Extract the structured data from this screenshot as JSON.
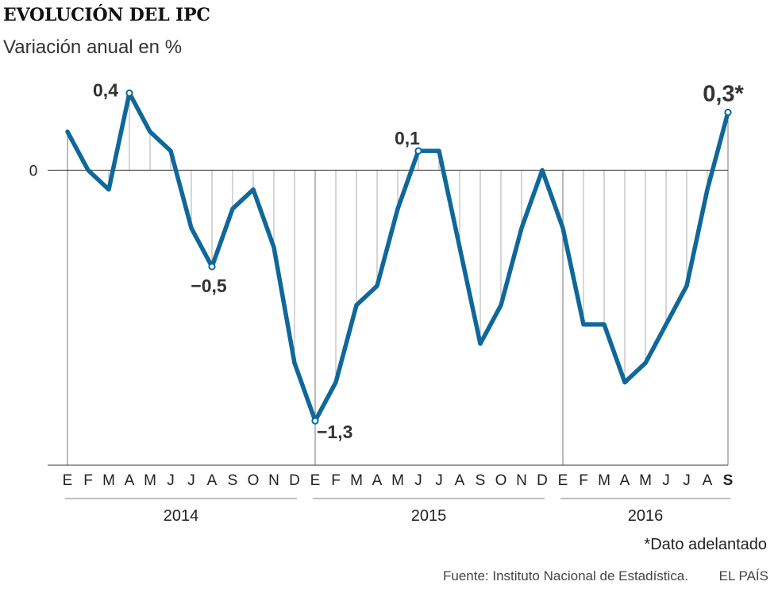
{
  "chart_data": {
    "type": "line",
    "title": "EVOLUCIÓN DEL IPC",
    "subtitle": "Variación anual en %",
    "ylabel": "",
    "xlabel": "",
    "ylim": [
      -1.53,
      0.5
    ],
    "zero_label": "0",
    "month_letters": [
      "E",
      "F",
      "M",
      "A",
      "M",
      "J",
      "J",
      "A",
      "S",
      "O",
      "N",
      "D",
      "E",
      "F",
      "M",
      "A",
      "M",
      "J",
      "J",
      "A",
      "S",
      "O",
      "N",
      "D",
      "E",
      "F",
      "M",
      "A",
      "M",
      "J",
      "J",
      "A",
      "S"
    ],
    "years": [
      {
        "label": "2014",
        "start": 0,
        "end": 11
      },
      {
        "label": "2015",
        "start": 12,
        "end": 23
      },
      {
        "label": "2016",
        "start": 24,
        "end": 32
      }
    ],
    "series": [
      {
        "name": "IPC",
        "color": "#0f6899",
        "values": [
          0.2,
          0.0,
          -0.1,
          0.4,
          0.2,
          0.1,
          -0.3,
          -0.5,
          -0.2,
          -0.1,
          -0.4,
          -1.0,
          -1.3,
          -1.1,
          -0.7,
          -0.6,
          -0.2,
          0.1,
          0.1,
          -0.4,
          -0.9,
          -0.7,
          -0.3,
          0.0,
          -0.3,
          -0.8,
          -0.8,
          -1.1,
          -1.0,
          -0.8,
          -0.6,
          -0.1,
          0.3
        ]
      }
    ],
    "annotations": [
      {
        "index": 3,
        "text": "0,4",
        "position": "left"
      },
      {
        "index": 7,
        "text": "−0,5",
        "position": "below"
      },
      {
        "index": 12,
        "text": "−1,3",
        "position": "below-right"
      },
      {
        "index": 17,
        "text": "0,1",
        "position": "above-left"
      },
      {
        "index": 32,
        "text": "0,3*",
        "position": "above",
        "emphasis": true
      }
    ],
    "footnote": "*Dato adelantado",
    "source": "Fuente: Instituto Nacional de Estadística.",
    "brand": "EL PAÍS"
  }
}
